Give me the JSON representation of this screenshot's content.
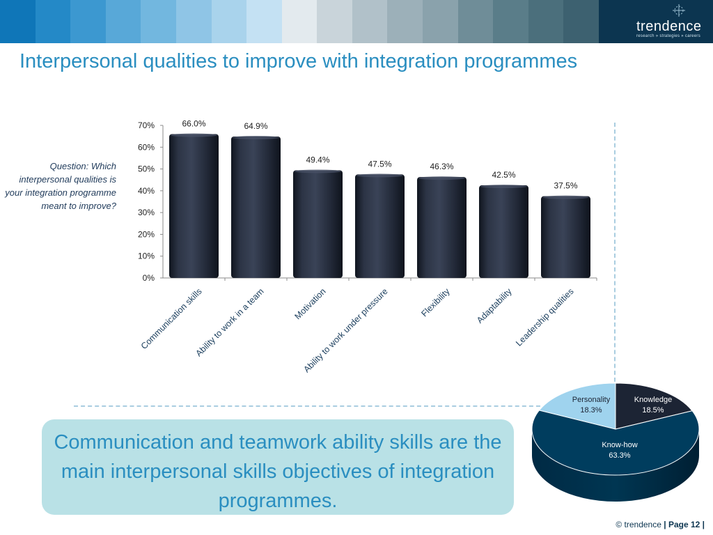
{
  "header": {
    "band_colors": [
      "#0f76b8",
      "#2489c7",
      "#3c98d0",
      "#58a8d8",
      "#72b7df",
      "#8fc5e6",
      "#a9d3ec",
      "#c4e1f3",
      "#e3eaee",
      "#c9d4da",
      "#b1c1c9",
      "#9cb0b9",
      "#8aa2ac",
      "#6f8d98",
      "#5a7d89",
      "#4b6f7c",
      "#3d6170"
    ],
    "logo_text": "trendence",
    "logo_tagline": "research » strategies » careers"
  },
  "title": "Interpersonal qualities to improve with integration programmes",
  "question": "Question: Which interpersonal qualities is your integration programme meant to improve?",
  "callout": "Communication and teamwork ability skills are the main interpersonal skills objectives of integration programmes.",
  "footer": {
    "copyright": "© trendence",
    "page": "| Page 12 |"
  },
  "chart_data": [
    {
      "type": "bar",
      "categories": [
        "Communication skills",
        "Ability to work in a team",
        "Motivation",
        "Ability to work under pressure",
        "Flexibility",
        "Adaptability",
        "Leadership qualities"
      ],
      "values": [
        66.0,
        64.9,
        49.4,
        47.5,
        46.3,
        42.5,
        37.5
      ],
      "data_labels": [
        "66.0%",
        "64.9%",
        "49.4%",
        "47.5%",
        "46.3%",
        "42.5%",
        "37.5%"
      ],
      "ylim": [
        0,
        70
      ],
      "yticks": [
        "0%",
        "10%",
        "20%",
        "30%",
        "40%",
        "50%",
        "60%",
        "70%"
      ],
      "bar_color": "#1e2535",
      "grid": false
    },
    {
      "type": "pie",
      "slices": [
        {
          "label": "Knowledge",
          "value": 18.5,
          "value_label": "18.5%",
          "color": "#1c2434"
        },
        {
          "label": "Know-how",
          "value": 63.3,
          "value_label": "63.3%",
          "color": "#003d5e"
        },
        {
          "label": "Personality",
          "value": 18.3,
          "value_label": "18.3%",
          "color": "#9fd3ee"
        }
      ]
    }
  ]
}
